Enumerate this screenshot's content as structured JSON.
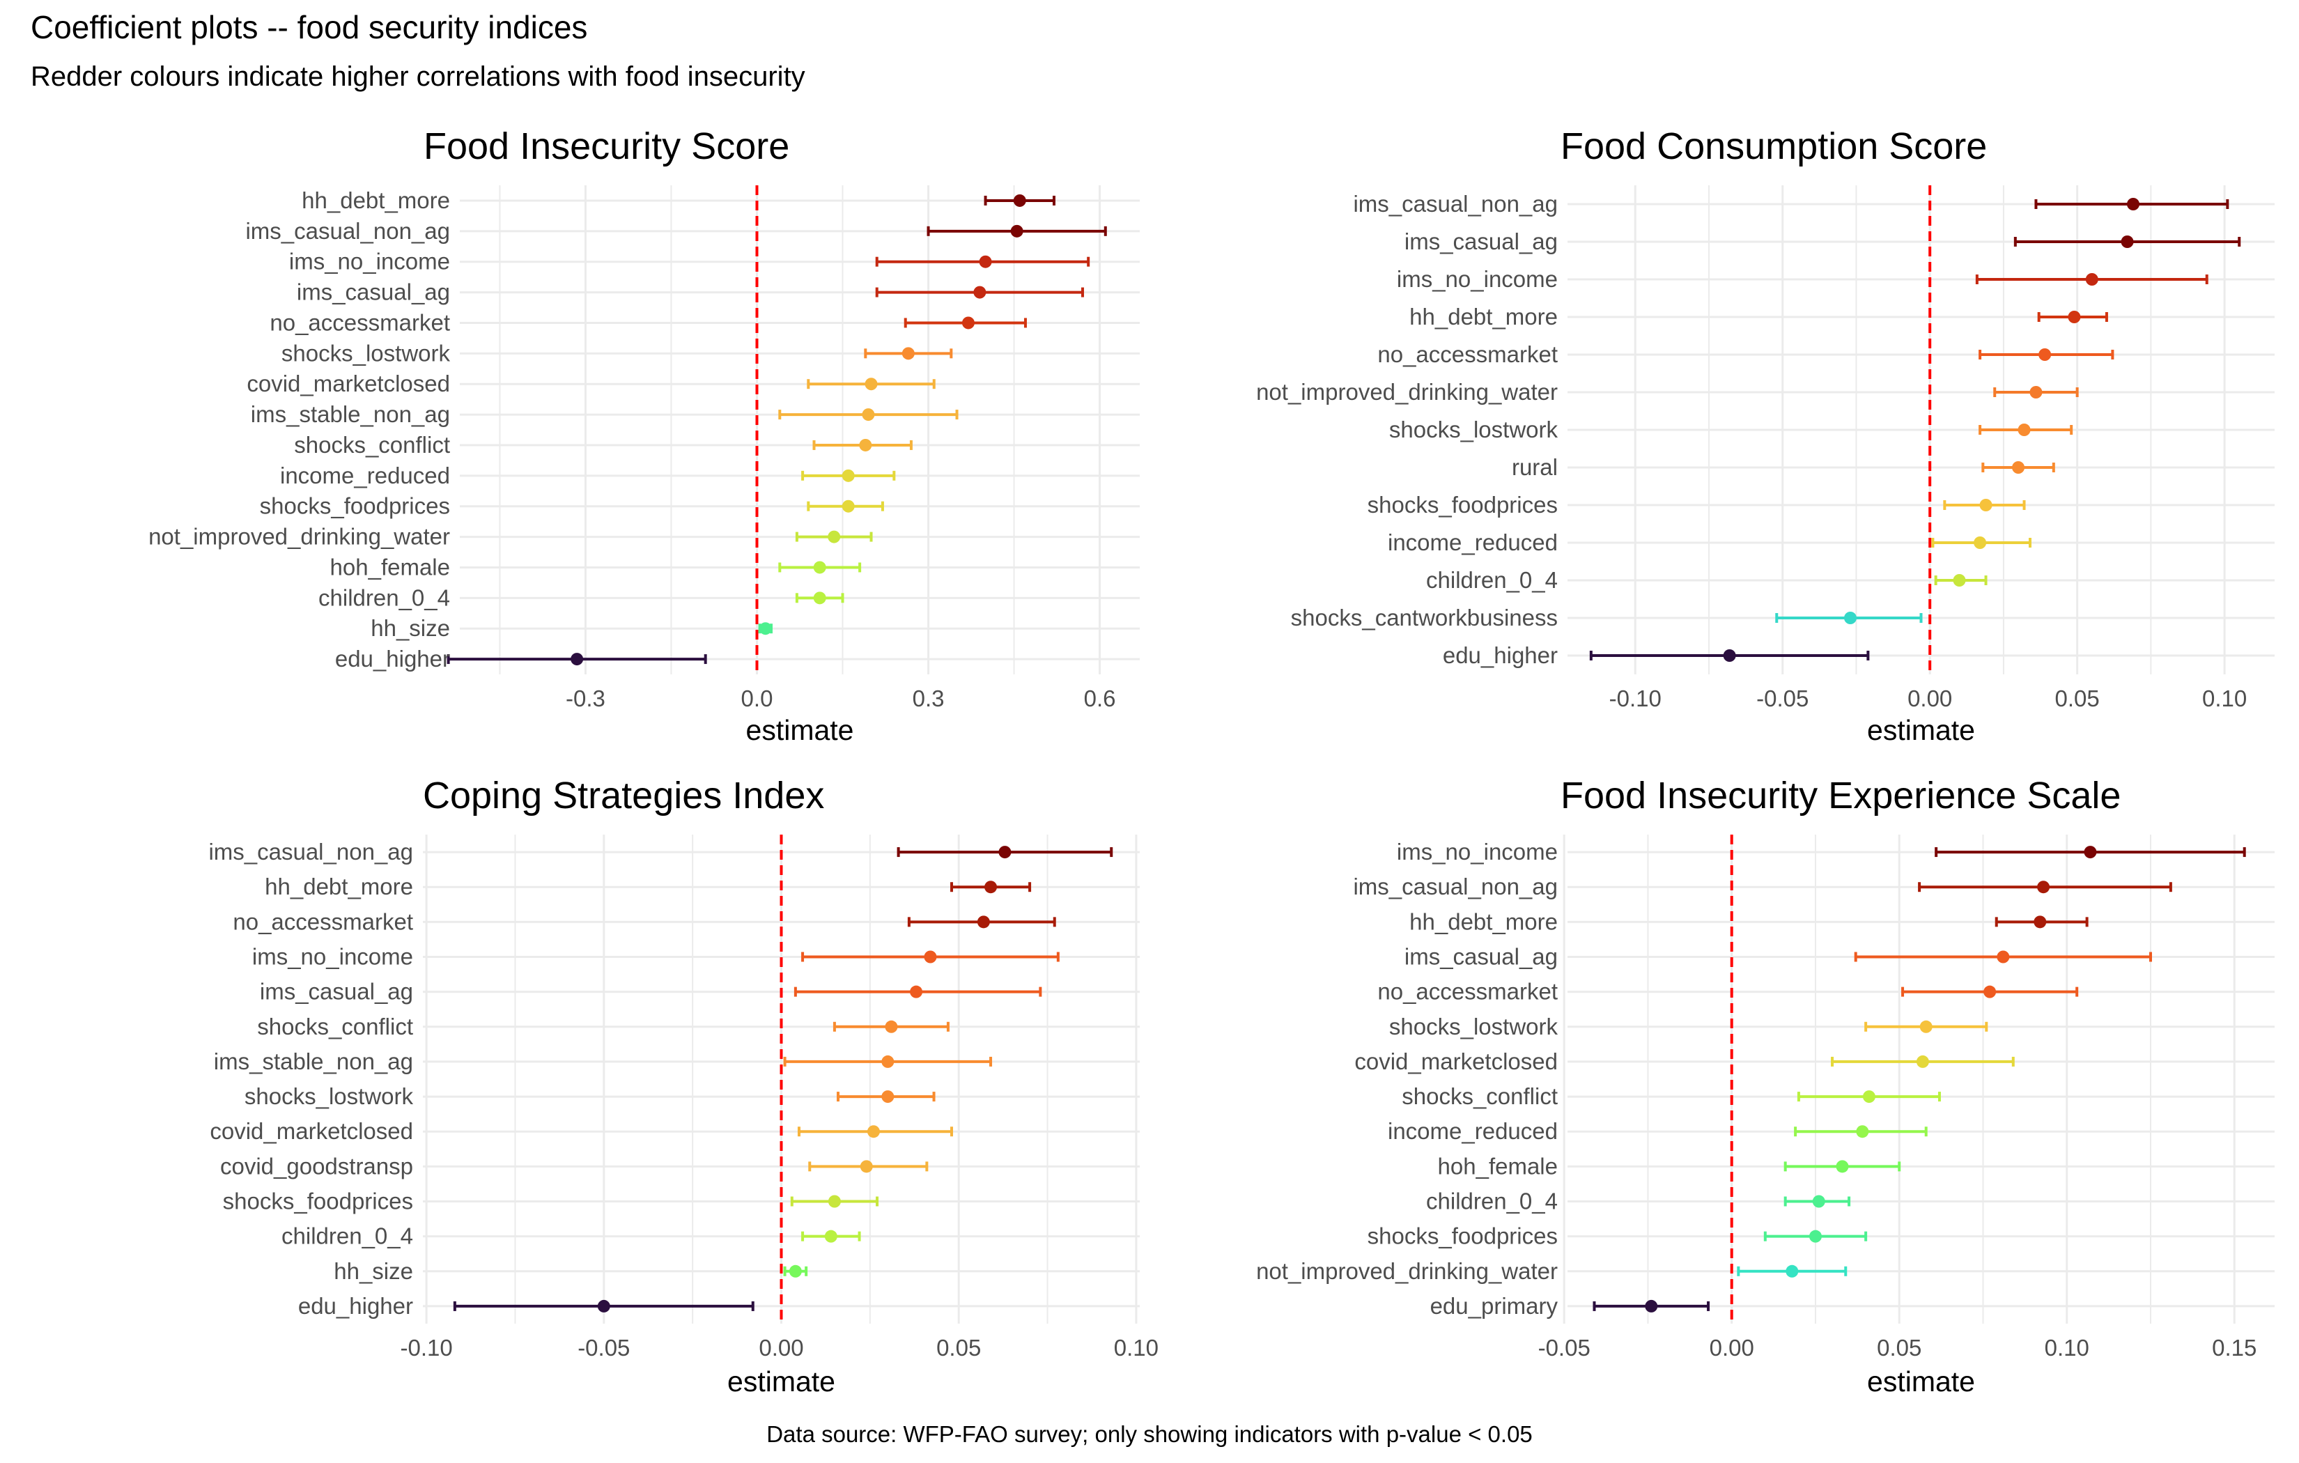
{
  "title": "Coefficient plots -- food security indices",
  "subtitle": "Redder colours indicate higher correlations with food insecurity",
  "caption": "Data source: WFP-FAO survey; only showing indicators with p-value < 0.05",
  "colors": {
    "reference_line": "#ff0000",
    "grid": "#ebebeb",
    "edu_higher": "#2b0f3f",
    "palette_cool_to_warm": [
      "#35e3c3",
      "#4cf08f",
      "#76f85b",
      "#b9f140",
      "#e4d83a",
      "#f6b33b",
      "#f88b2f",
      "#ee5a1f",
      "#d0320f",
      "#a81b07",
      "#7a0403"
    ]
  },
  "chart_data": [
    {
      "type": "scatter",
      "subtype": "coefficient-plot",
      "title": "Food Insecurity Score",
      "xlabel": "estimate",
      "ylabel": "",
      "xlim": [
        -0.52,
        0.67
      ],
      "xticks": [
        -0.3,
        0.0,
        0.3,
        0.6
      ],
      "xtick_labels": [
        "-0.3",
        "0.0",
        "0.3",
        "0.6"
      ],
      "reference_line": 0,
      "grid": true,
      "series": [
        {
          "name": "hh_debt_more",
          "estimate": 0.46,
          "lower": 0.4,
          "upper": 0.52,
          "color": "#7a0403"
        },
        {
          "name": "ims_casual_non_ag",
          "estimate": 0.455,
          "lower": 0.3,
          "upper": 0.61,
          "color": "#7a0403"
        },
        {
          "name": "ims_no_income",
          "estimate": 0.4,
          "lower": 0.21,
          "upper": 0.58,
          "color": "#c42810"
        },
        {
          "name": "ims_casual_ag",
          "estimate": 0.39,
          "lower": 0.21,
          "upper": 0.57,
          "color": "#c42810"
        },
        {
          "name": "no_accessmarket",
          "estimate": 0.37,
          "lower": 0.26,
          "upper": 0.47,
          "color": "#d23510"
        },
        {
          "name": "shocks_lostwork",
          "estimate": 0.265,
          "lower": 0.19,
          "upper": 0.34,
          "color": "#f88b2f"
        },
        {
          "name": "covid_marketclosed",
          "estimate": 0.2,
          "lower": 0.09,
          "upper": 0.31,
          "color": "#f6b33b"
        },
        {
          "name": "ims_stable_non_ag",
          "estimate": 0.195,
          "lower": 0.04,
          "upper": 0.35,
          "color": "#f6b33b"
        },
        {
          "name": "shocks_conflict",
          "estimate": 0.19,
          "lower": 0.1,
          "upper": 0.27,
          "color": "#f6b33b"
        },
        {
          "name": "income_reduced",
          "estimate": 0.16,
          "lower": 0.08,
          "upper": 0.24,
          "color": "#e4d83a"
        },
        {
          "name": "shocks_foodprices",
          "estimate": 0.16,
          "lower": 0.09,
          "upper": 0.22,
          "color": "#e4d83a"
        },
        {
          "name": "not_improved_drinking_water",
          "estimate": 0.135,
          "lower": 0.07,
          "upper": 0.2,
          "color": "#c7e63c"
        },
        {
          "name": "hoh_female",
          "estimate": 0.11,
          "lower": 0.04,
          "upper": 0.18,
          "color": "#b9f140"
        },
        {
          "name": "children_0_4",
          "estimate": 0.11,
          "lower": 0.07,
          "upper": 0.15,
          "color": "#b9f140"
        },
        {
          "name": "hh_size",
          "estimate": 0.015,
          "lower": 0.005,
          "upper": 0.025,
          "color": "#4cf08f"
        },
        {
          "name": "edu_higher",
          "estimate": -0.315,
          "lower": -0.54,
          "upper": -0.09,
          "color": "#2b0f3f"
        }
      ]
    },
    {
      "type": "scatter",
      "subtype": "coefficient-plot",
      "title": "Food Consumption Score",
      "xlabel": "estimate",
      "ylabel": "",
      "xlim": [
        -0.123,
        0.117
      ],
      "xticks": [
        -0.1,
        -0.05,
        0.0,
        0.05,
        0.1
      ],
      "xtick_labels": [
        "-0.10",
        "-0.05",
        "0.00",
        "0.05",
        "0.10"
      ],
      "reference_line": 0,
      "grid": true,
      "series": [
        {
          "name": "ims_casual_non_ag",
          "estimate": 0.069,
          "lower": 0.036,
          "upper": 0.101,
          "color": "#7a0403"
        },
        {
          "name": "ims_casual_ag",
          "estimate": 0.067,
          "lower": 0.029,
          "upper": 0.105,
          "color": "#7a0403"
        },
        {
          "name": "ims_no_income",
          "estimate": 0.055,
          "lower": 0.016,
          "upper": 0.094,
          "color": "#c42810"
        },
        {
          "name": "hh_debt_more",
          "estimate": 0.049,
          "lower": 0.037,
          "upper": 0.06,
          "color": "#d23510"
        },
        {
          "name": "no_accessmarket",
          "estimate": 0.039,
          "lower": 0.017,
          "upper": 0.062,
          "color": "#ee5a1f"
        },
        {
          "name": "not_improved_drinking_water",
          "estimate": 0.036,
          "lower": 0.022,
          "upper": 0.05,
          "color": "#f47a2a"
        },
        {
          "name": "shocks_lostwork",
          "estimate": 0.032,
          "lower": 0.017,
          "upper": 0.048,
          "color": "#f88b2f"
        },
        {
          "name": "rural",
          "estimate": 0.03,
          "lower": 0.018,
          "upper": 0.042,
          "color": "#f88b2f"
        },
        {
          "name": "shocks_foodprices",
          "estimate": 0.019,
          "lower": 0.005,
          "upper": 0.032,
          "color": "#f6c23b"
        },
        {
          "name": "income_reduced",
          "estimate": 0.017,
          "lower": 0.001,
          "upper": 0.034,
          "color": "#ecd03a"
        },
        {
          "name": "children_0_4",
          "estimate": 0.01,
          "lower": 0.002,
          "upper": 0.019,
          "color": "#c7e63c"
        },
        {
          "name": "shocks_cantworkbusiness",
          "estimate": -0.027,
          "lower": -0.052,
          "upper": -0.003,
          "color": "#35d8c8"
        },
        {
          "name": "edu_higher",
          "estimate": -0.068,
          "lower": -0.115,
          "upper": -0.021,
          "color": "#2b0f3f"
        }
      ]
    },
    {
      "type": "scatter",
      "subtype": "coefficient-plot",
      "title": "Coping Strategies Index",
      "xlabel": "estimate",
      "ylabel": "",
      "xlim": [
        -0.101,
        0.101
      ],
      "xticks": [
        -0.1,
        -0.05,
        0.0,
        0.05,
        0.1
      ],
      "xtick_labels": [
        "-0.10",
        "-0.05",
        "0.00",
        "0.05",
        "0.10"
      ],
      "reference_line": 0,
      "grid": true,
      "series": [
        {
          "name": "ims_casual_non_ag",
          "estimate": 0.063,
          "lower": 0.033,
          "upper": 0.093,
          "color": "#7a0403"
        },
        {
          "name": "hh_debt_more",
          "estimate": 0.059,
          "lower": 0.048,
          "upper": 0.07,
          "color": "#a81b07"
        },
        {
          "name": "no_accessmarket",
          "estimate": 0.057,
          "lower": 0.036,
          "upper": 0.077,
          "color": "#a81b07"
        },
        {
          "name": "ims_no_income",
          "estimate": 0.042,
          "lower": 0.006,
          "upper": 0.078,
          "color": "#ee5a1f"
        },
        {
          "name": "ims_casual_ag",
          "estimate": 0.038,
          "lower": 0.004,
          "upper": 0.073,
          "color": "#ee5a1f"
        },
        {
          "name": "shocks_conflict",
          "estimate": 0.031,
          "lower": 0.015,
          "upper": 0.047,
          "color": "#f88b2f"
        },
        {
          "name": "ims_stable_non_ag",
          "estimate": 0.03,
          "lower": 0.001,
          "upper": 0.059,
          "color": "#f88b2f"
        },
        {
          "name": "shocks_lostwork",
          "estimate": 0.03,
          "lower": 0.016,
          "upper": 0.043,
          "color": "#f88b2f"
        },
        {
          "name": "covid_marketclosed",
          "estimate": 0.026,
          "lower": 0.005,
          "upper": 0.048,
          "color": "#f6b33b"
        },
        {
          "name": "covid_goodstransp",
          "estimate": 0.024,
          "lower": 0.008,
          "upper": 0.041,
          "color": "#f6b33b"
        },
        {
          "name": "shocks_foodprices",
          "estimate": 0.015,
          "lower": 0.003,
          "upper": 0.027,
          "color": "#c7e63c"
        },
        {
          "name": "children_0_4",
          "estimate": 0.014,
          "lower": 0.006,
          "upper": 0.022,
          "color": "#b9f140"
        },
        {
          "name": "hh_size",
          "estimate": 0.004,
          "lower": 0.001,
          "upper": 0.007,
          "color": "#76f85b"
        },
        {
          "name": "edu_higher",
          "estimate": -0.05,
          "lower": -0.092,
          "upper": -0.008,
          "color": "#2b0f3f"
        }
      ]
    },
    {
      "type": "scatter",
      "subtype": "coefficient-plot",
      "title": "Food Insecurity Experience Scale",
      "xlabel": "estimate",
      "ylabel": "",
      "xlim": [
        -0.049,
        0.162
      ],
      "xticks": [
        -0.05,
        0.0,
        0.05,
        0.1,
        0.15
      ],
      "xtick_labels": [
        "-0.05",
        "0.00",
        "0.05",
        "0.10",
        "0.15"
      ],
      "reference_line": 0,
      "grid": true,
      "series": [
        {
          "name": "ims_no_income",
          "estimate": 0.107,
          "lower": 0.061,
          "upper": 0.153,
          "color": "#7a0403"
        },
        {
          "name": "ims_casual_non_ag",
          "estimate": 0.093,
          "lower": 0.056,
          "upper": 0.131,
          "color": "#a81b07"
        },
        {
          "name": "hh_debt_more",
          "estimate": 0.092,
          "lower": 0.079,
          "upper": 0.106,
          "color": "#a81b07"
        },
        {
          "name": "ims_casual_ag",
          "estimate": 0.081,
          "lower": 0.037,
          "upper": 0.125,
          "color": "#ee5a1f"
        },
        {
          "name": "no_accessmarket",
          "estimate": 0.077,
          "lower": 0.051,
          "upper": 0.103,
          "color": "#ee5a1f"
        },
        {
          "name": "shocks_lostwork",
          "estimate": 0.058,
          "lower": 0.04,
          "upper": 0.076,
          "color": "#f6c23b"
        },
        {
          "name": "covid_marketclosed",
          "estimate": 0.057,
          "lower": 0.03,
          "upper": 0.084,
          "color": "#e4d83a"
        },
        {
          "name": "shocks_conflict",
          "estimate": 0.041,
          "lower": 0.02,
          "upper": 0.062,
          "color": "#b9f140"
        },
        {
          "name": "income_reduced",
          "estimate": 0.039,
          "lower": 0.019,
          "upper": 0.058,
          "color": "#94f64c"
        },
        {
          "name": "hoh_female",
          "estimate": 0.033,
          "lower": 0.016,
          "upper": 0.05,
          "color": "#76f85b"
        },
        {
          "name": "children_0_4",
          "estimate": 0.026,
          "lower": 0.016,
          "upper": 0.035,
          "color": "#4cf08f"
        },
        {
          "name": "shocks_foodprices",
          "estimate": 0.025,
          "lower": 0.01,
          "upper": 0.04,
          "color": "#4cf08f"
        },
        {
          "name": "not_improved_drinking_water",
          "estimate": 0.018,
          "lower": 0.002,
          "upper": 0.034,
          "color": "#35e3c3"
        },
        {
          "name": "edu_primary",
          "estimate": -0.024,
          "lower": -0.041,
          "upper": -0.007,
          "color": "#2b0f3f"
        }
      ]
    }
  ]
}
